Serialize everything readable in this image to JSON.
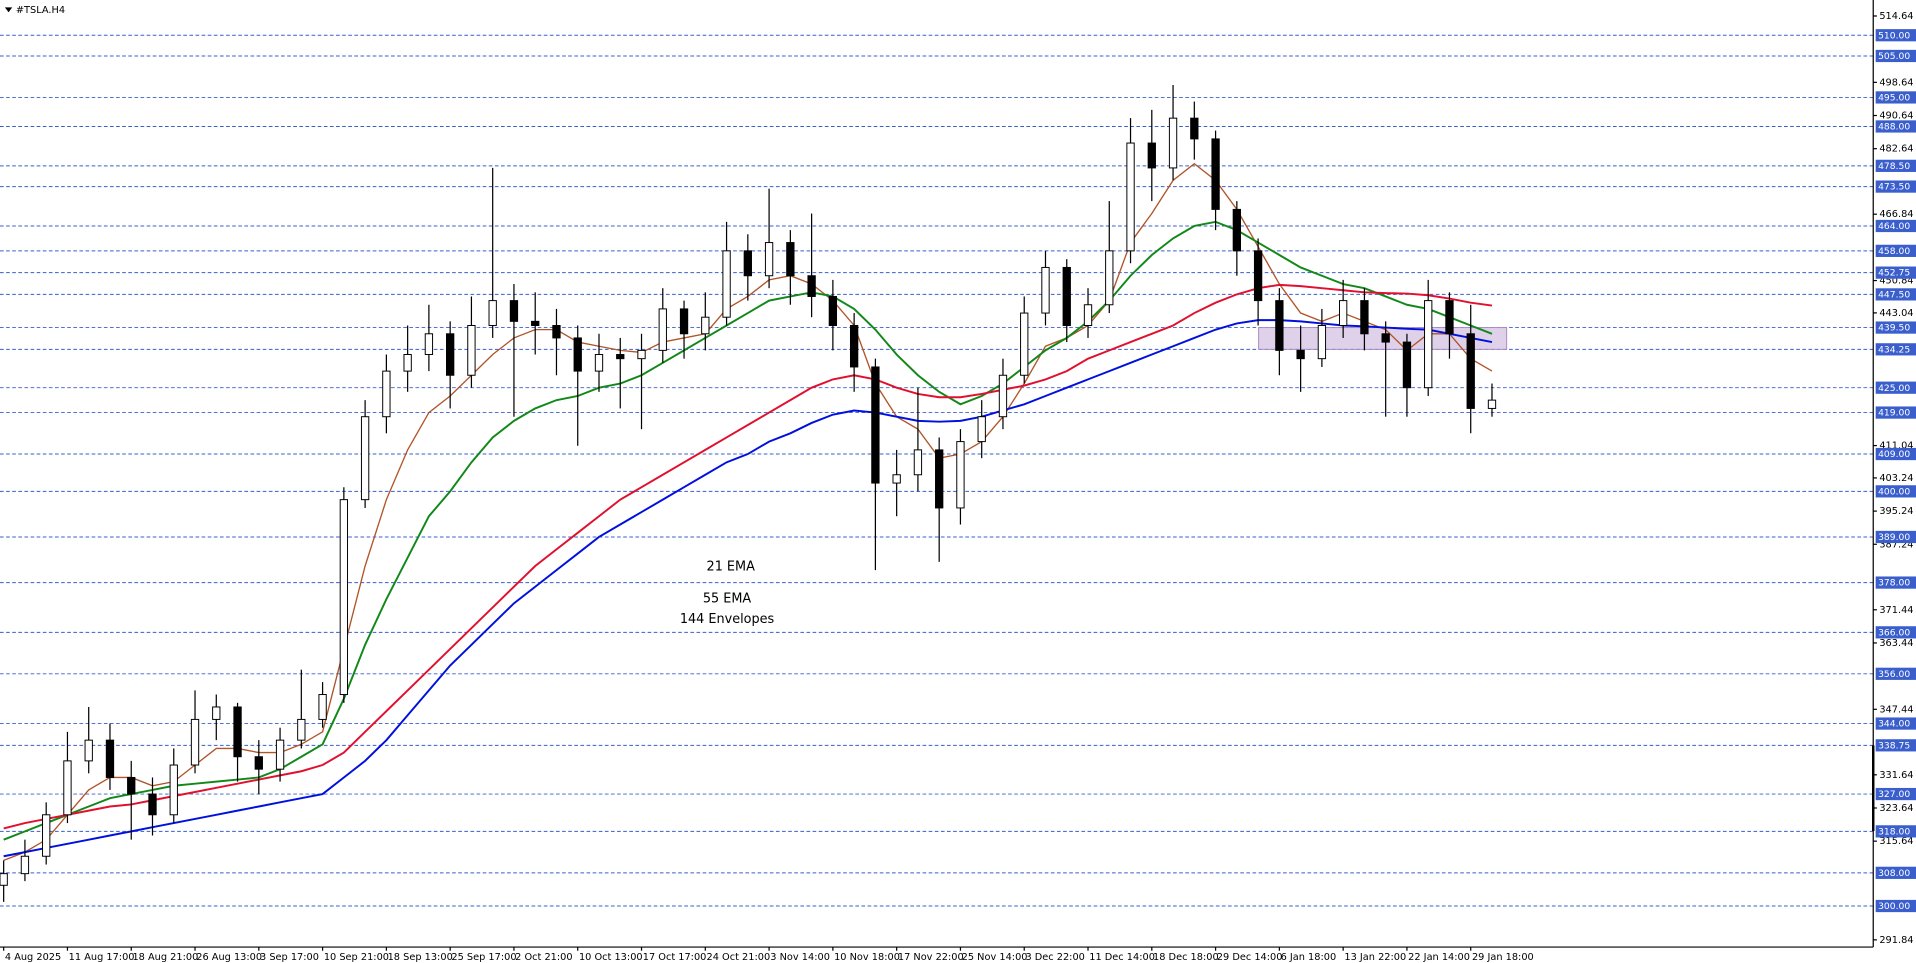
{
  "chart_data": {
    "type": "candlestick",
    "title": "#TSLA.H4",
    "categories": [
      "4 Aug 2025",
      null,
      null,
      "11 Aug 17:00",
      null,
      null,
      "18 Aug 21:00",
      null,
      null,
      "26 Aug 13:00",
      null,
      null,
      "3 Sep 17:00",
      null,
      null,
      "10 Sep 21:00",
      null,
      null,
      "18 Sep 13:00",
      null,
      null,
      "25 Sep 17:00",
      null,
      null,
      "2 Oct 21:00",
      null,
      null,
      "10 Oct 13:00",
      null,
      null,
      "17 Oct 17:00",
      null,
      null,
      "24 Oct 21:00",
      null,
      null,
      "3 Nov 14:00",
      null,
      null,
      "10 Nov 18:00",
      null,
      null,
      "17 Nov 22:00",
      null,
      null,
      "25 Nov 14:00",
      null,
      null,
      "3 Dec 22:00",
      null,
      null,
      "11 Dec 14:00",
      null,
      null,
      "18 Dec 18:00",
      null,
      null,
      "29 Dec 14:00",
      null,
      null,
      "6 Jan 18:00",
      null,
      null,
      "13 Jan 22:00",
      null,
      null,
      "22 Jan 14:00",
      null,
      null,
      "29 Jan 18:00",
      null
    ],
    "ohlc": [
      [
        305,
        311,
        301,
        307.8
      ],
      [
        307.8,
        316,
        306,
        312
      ],
      [
        312,
        325,
        310,
        322
      ],
      [
        322,
        342,
        320,
        335
      ],
      [
        335,
        348,
        332,
        340
      ],
      [
        340,
        344,
        328,
        331
      ],
      [
        331,
        335,
        316,
        327
      ],
      [
        327,
        331,
        317,
        322
      ],
      [
        322,
        338,
        320,
        334
      ],
      [
        334,
        352,
        332,
        345
      ],
      [
        345,
        351,
        340,
        348
      ],
      [
        348,
        349,
        330,
        336
      ],
      [
        336,
        340,
        327,
        333
      ],
      [
        333,
        343,
        330,
        340
      ],
      [
        340,
        357,
        338,
        345
      ],
      [
        345,
        354,
        343,
        351
      ],
      [
        351,
        401,
        349,
        398
      ],
      [
        398,
        422,
        396,
        418
      ],
      [
        418,
        433,
        414,
        429
      ],
      [
        429,
        440,
        424,
        433
      ],
      [
        433,
        445,
        429,
        438
      ],
      [
        438,
        441,
        420,
        428
      ],
      [
        428,
        447,
        425,
        440
      ],
      [
        440,
        478,
        437,
        446
      ],
      [
        446,
        450,
        418,
        441
      ],
      [
        441,
        448,
        433,
        440
      ],
      [
        440,
        444,
        428,
        437
      ],
      [
        437,
        440,
        411,
        429
      ],
      [
        429,
        438,
        424,
        433
      ],
      [
        433,
        437,
        420,
        432
      ],
      [
        432,
        438,
        415,
        434
      ],
      [
        434,
        449,
        431,
        444
      ],
      [
        444,
        446,
        432,
        438
      ],
      [
        438,
        448,
        434,
        442
      ],
      [
        442,
        465,
        440,
        458
      ],
      [
        458,
        462,
        446,
        452
      ],
      [
        452,
        473,
        449,
        460
      ],
      [
        460,
        463,
        445,
        452
      ],
      [
        452,
        467,
        442,
        447
      ],
      [
        447,
        451,
        434,
        440
      ],
      [
        440,
        443,
        424,
        430
      ],
      [
        430,
        432,
        381,
        402
      ],
      [
        402,
        410,
        394,
        404
      ],
      [
        404,
        425,
        400,
        410
      ],
      [
        410,
        413,
        383,
        396
      ],
      [
        396,
        415,
        392,
        412
      ],
      [
        412,
        422,
        408,
        418
      ],
      [
        418,
        432,
        415,
        428
      ],
      [
        428,
        447,
        426,
        443
      ],
      [
        443,
        458,
        440,
        454
      ],
      [
        454,
        456,
        436,
        440
      ],
      [
        440,
        449,
        437,
        445
      ],
      [
        445,
        470,
        443,
        458
      ],
      [
        458,
        490,
        455,
        484
      ],
      [
        484,
        492,
        470,
        478
      ],
      [
        478,
        498,
        475,
        490
      ],
      [
        490,
        494,
        480,
        485
      ],
      [
        485,
        487,
        463,
        468
      ],
      [
        468,
        470,
        452,
        458
      ],
      [
        458,
        461,
        440,
        446
      ],
      [
        446,
        449,
        428,
        434
      ],
      [
        434,
        440,
        424,
        432
      ],
      [
        432,
        444,
        430,
        440
      ],
      [
        440,
        451,
        437,
        446
      ],
      [
        446,
        449,
        434,
        438
      ],
      [
        438,
        441,
        418,
        436
      ],
      [
        436,
        438,
        418,
        425
      ],
      [
        425,
        451,
        423,
        446
      ],
      [
        446,
        448,
        432,
        438
      ],
      [
        438,
        445,
        414,
        420
      ],
      [
        420,
        426,
        418,
        422
      ]
    ],
    "series": [
      {
        "name": "21 EMA",
        "color": "#b0552a",
        "values": [
          311,
          313,
          316,
          322,
          328,
          331,
          331,
          329,
          330,
          334,
          338,
          338,
          337,
          337,
          339,
          342,
          362,
          382,
          398,
          410,
          419,
          423,
          428,
          433,
          437,
          439,
          439,
          436,
          435,
          434,
          433.5,
          436,
          437,
          438,
          444,
          447,
          451,
          452,
          450,
          446,
          440,
          426,
          418,
          415,
          408,
          409,
          412,
          418,
          426,
          435,
          437,
          440,
          446,
          460,
          467,
          475,
          479,
          475,
          468,
          459,
          450,
          443,
          441,
          443,
          441,
          439,
          434,
          438,
          438,
          432,
          429
        ]
      },
      {
        "name": "55 EMA",
        "color": "#13881a",
        "values": [
          316,
          318,
          320,
          322,
          324,
          326,
          327,
          328,
          329,
          329.5,
          330,
          330.5,
          331,
          333,
          336,
          339,
          350,
          363,
          374,
          384,
          394,
          400,
          407,
          413,
          417,
          420,
          422,
          423,
          425,
          426,
          428,
          431,
          434,
          437,
          440,
          443,
          446,
          447,
          448,
          447,
          444,
          439,
          433,
          428,
          424,
          421,
          423,
          426,
          430,
          434,
          437,
          441,
          446,
          452,
          457,
          461,
          464,
          465,
          463,
          460,
          457,
          454,
          452,
          450,
          449,
          447,
          445,
          444,
          442,
          440,
          438
        ]
      },
      {
        "name": "144 Envelopes",
        "color": "#e0102e",
        "values": [
          318.7,
          320,
          321,
          322,
          323,
          324,
          324.5,
          325.5,
          326.5,
          327.5,
          328.5,
          329.5,
          330.5,
          331.5,
          332.5,
          334,
          337,
          342,
          347,
          352,
          357,
          362,
          367,
          372,
          377,
          382,
          386,
          390,
          394,
          398,
          401,
          404,
          407,
          410,
          413,
          416,
          419,
          422,
          425,
          427,
          428,
          427,
          425,
          423.5,
          422.7,
          422.7,
          423.5,
          424.5,
          425.5,
          427,
          429,
          432,
          434,
          436,
          438,
          440,
          443,
          445.5,
          447.5,
          449,
          449.8,
          449.5,
          449,
          448.5,
          448,
          447.8,
          447.7,
          447.3,
          446.5,
          445.5,
          444.8
        ],
        "lower_color": "#0010dd",
        "lower_values": [
          312,
          313,
          314,
          315,
          316,
          317,
          318,
          319,
          320,
          321,
          322,
          323,
          324,
          325,
          326,
          327,
          331,
          335,
          340,
          346,
          352,
          358,
          363,
          368,
          373,
          377,
          381,
          385,
          389,
          392,
          395,
          398,
          401,
          404,
          407,
          409,
          412,
          414,
          416.5,
          418.5,
          419.5,
          419,
          418,
          417,
          416.8,
          417,
          418,
          419.5,
          421,
          423,
          425,
          427,
          429,
          431,
          433,
          435,
          437,
          439,
          440.5,
          441.3,
          441.3,
          441,
          440.5,
          440,
          439.8,
          439.5,
          439.2,
          439,
          438,
          437,
          436
        ]
      }
    ],
    "ylim": [
      290.1,
      517.6
    ],
    "yticks": [
      514.64,
      498.64,
      490.64,
      482.64,
      466.84,
      450.84,
      443.04,
      411.04,
      403.24,
      395.24,
      387.24,
      371.44,
      363.44,
      347.44,
      331.64,
      323.64,
      315.64,
      291.84
    ],
    "levels": [
      {
        "value": 510,
        "label": "510.00"
      },
      {
        "value": 505,
        "label": "505.00"
      },
      {
        "value": 495,
        "label": "495.00"
      },
      {
        "value": 488,
        "label": "488.00"
      },
      {
        "value": 478.5,
        "label": "478.50"
      },
      {
        "value": 473.5,
        "label": "473.50"
      },
      {
        "value": 464,
        "label": "464.00"
      },
      {
        "value": 458,
        "label": "458.00"
      },
      {
        "value": 452.75,
        "label": "452.75"
      },
      {
        "value": 447.5,
        "label": "447.50"
      },
      {
        "value": 439.5,
        "label": "439.50"
      },
      {
        "value": 434.25,
        "label": "434.25"
      },
      {
        "value": 425,
        "label": "425.00"
      },
      {
        "value": 419,
        "label": "419.00"
      },
      {
        "value": 409,
        "label": "409.00"
      },
      {
        "value": 400,
        "label": "400.00"
      },
      {
        "value": 389,
        "label": "389.00"
      },
      {
        "value": 378,
        "label": "378.00"
      },
      {
        "value": 366,
        "label": "366.00"
      },
      {
        "value": 356,
        "label": "356.00"
      },
      {
        "value": 344,
        "label": "344.00"
      },
      {
        "value": 338.75,
        "label": "338.75"
      },
      {
        "value": 327,
        "label": "327.00"
      },
      {
        "value": 318,
        "label": "318.00"
      },
      {
        "value": 308,
        "label": "308.00"
      },
      {
        "value": 300,
        "label": "300.00"
      }
    ],
    "level_color": "#3a5fcd",
    "zone": [
      434.25,
      439.5
    ]
  }
}
